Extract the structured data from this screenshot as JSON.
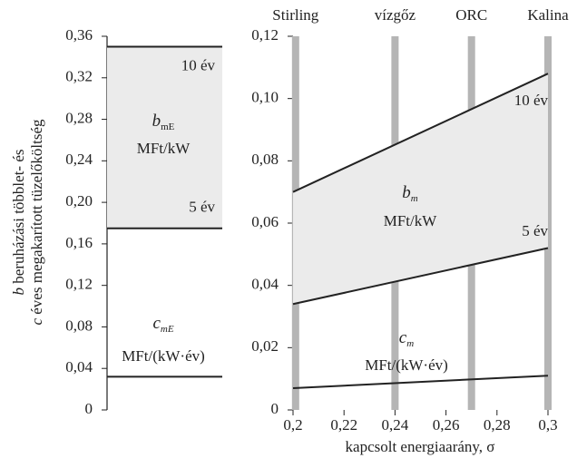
{
  "chart_data": [
    {
      "type": "hline",
      "ylim": [
        0,
        0.36
      ],
      "yticks": [
        0,
        {
          "value": 0.04,
          "label": "0,04"
        },
        {
          "value": 0.08,
          "label": "0,08"
        },
        {
          "value": 0.12,
          "label": "0,12"
        },
        {
          "value": 0.16,
          "label": "0,16"
        },
        {
          "value": 0.2,
          "label": "0,20"
        },
        {
          "value": 0.24,
          "label": "0,24"
        },
        {
          "value": 0.28,
          "label": "0,28"
        },
        {
          "value": 0.32,
          "label": "0,32"
        },
        {
          "value": 0.36,
          "label": "0,36"
        }
      ],
      "ylabel_lines": [
        {
          "symbol": "b",
          "text": " beruházási többlet- és"
        },
        {
          "symbol": "c",
          "text": " éves megakarított tüzelőköltség"
        }
      ],
      "series": [
        {
          "name": "10 év",
          "values": [
            0.35
          ]
        },
        {
          "name": "5 év",
          "values": [
            0.175
          ]
        },
        {
          "values": [
            0.032
          ]
        }
      ],
      "band_color": "#ebebeb",
      "annotations": [
        {
          "symbol": "b",
          "subscript": "mE",
          "unit": "MFt/kW"
        },
        {
          "symbol": "c",
          "subscript": "mE",
          "unit": "MFt/(kW·év)"
        }
      ]
    },
    {
      "type": "line",
      "x": [
        0.2,
        0.3
      ],
      "xlim": [
        0.2,
        0.3
      ],
      "xticks": [
        {
          "value": 0.2,
          "label": "0,2"
        },
        {
          "value": 0.22,
          "label": "0,22"
        },
        {
          "value": 0.24,
          "label": "0,24"
        },
        {
          "value": 0.26,
          "label": "0,26"
        },
        {
          "value": 0.28,
          "label": "0,28"
        },
        {
          "value": 0.3,
          "label": "0,3"
        }
      ],
      "ylim": [
        0,
        0.12
      ],
      "yticks": [
        0,
        {
          "value": 0.02,
          "label": "0,02"
        },
        {
          "value": 0.04,
          "label": "0,04"
        },
        {
          "value": 0.06,
          "label": "0,06"
        },
        {
          "value": 0.08,
          "label": "0,08"
        },
        {
          "value": 0.1,
          "label": "0,10"
        },
        {
          "value": 0.12,
          "label": "0,12"
        }
      ],
      "xlabel": "kapcsolt energiaarány, σ",
      "series": [
        {
          "name": "10 év",
          "values": [
            0.07,
            0.108
          ]
        },
        {
          "name": "5 év",
          "values": [
            0.034,
            0.052
          ]
        },
        {
          "values": [
            0.007,
            0.011
          ]
        }
      ],
      "band_color": "#ebebeb",
      "markers": [
        {
          "label": "Stirling",
          "x": 0.201
        },
        {
          "label": "vízgőz",
          "x": 0.24
        },
        {
          "label": "ORC",
          "x": 0.27
        },
        {
          "label": "Kalina",
          "x": 0.3
        }
      ],
      "marker_color": "#b5b5b5",
      "annotations": [
        {
          "symbol": "b",
          "subscript": "m",
          "unit": "MFt/kW"
        },
        {
          "symbol": "c",
          "subscript": "m",
          "unit": "MFt/(kW·év)"
        }
      ]
    }
  ]
}
